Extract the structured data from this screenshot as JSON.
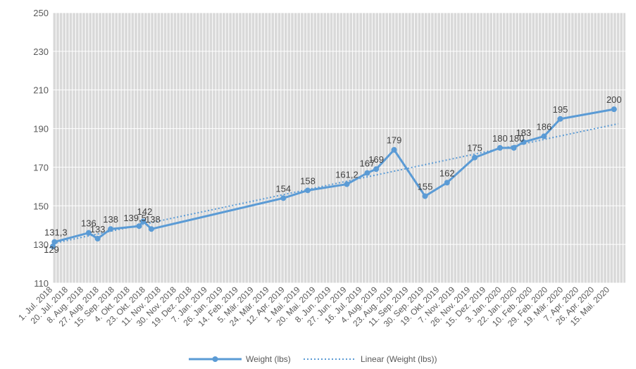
{
  "colors": {
    "background": "#ffffff",
    "plot_area": "#d9d9d9",
    "gridline": "#ffffff",
    "series": "#5b9bd5",
    "text": "#595959"
  },
  "chart_data": {
    "type": "line",
    "title": "",
    "xlabel": "",
    "ylabel": "",
    "ylim": [
      110,
      250
    ],
    "y_ticks": [
      110,
      130,
      150,
      170,
      190,
      210,
      230,
      250
    ],
    "x_axis_type": "date",
    "x_range": [
      "2018-07-01",
      "2020-06-03"
    ],
    "x_tick_interval_days": 19,
    "x_tick_labels": [
      "1. Jul. 2018",
      "20. Jul. 2018",
      "8. Aug. 2018",
      "27. Aug. 2018",
      "15. Sep. 2018",
      "4. Okt. 2018",
      "23. Okt. 2018",
      "11. Nov. 2018",
      "30. Nov. 2018",
      "19. Dez. 2018",
      "7. Jan. 2019",
      "26. Jan. 2019",
      "14. Feb. 2019",
      "5. Mär. 2019",
      "24. Mär. 2019",
      "12. Apr. 2019",
      "1. Mai. 2019",
      "20. Mai. 2019",
      "8. Jun. 2019",
      "27. Jun. 2019",
      "16. Jul. 2019",
      "4. Aug. 2019",
      "23. Aug. 2019",
      "11. Sep. 2019",
      "30. Sep. 2019",
      "19. Okt. 2019",
      "7. Nov. 2019",
      "26. Nov. 2019",
      "15. Dez. 2019",
      "3. Jan. 2020",
      "22. Jan. 2020",
      "10. Feb. 2020",
      "29. Feb. 2020",
      "19. Mär. 2020",
      "7. Apr. 2020",
      "26. Apr. 2020",
      "15. Mai. 2020"
    ],
    "grid": true,
    "legend_position": "bottom",
    "series": [
      {
        "name": "Weight (lbs)",
        "color": "#5b9bd5",
        "style": "solid-markers",
        "points": [
          {
            "x": "2018-07-01",
            "y": 129,
            "label": "129"
          },
          {
            "x": "2018-07-03",
            "y": 131.3,
            "label": "131,3"
          },
          {
            "x": "2018-08-14",
            "y": 136,
            "label": "136"
          },
          {
            "x": "2018-08-25",
            "y": 133,
            "label": "133"
          },
          {
            "x": "2018-09-10",
            "y": 138,
            "label": "138"
          },
          {
            "x": "2018-10-15",
            "y": 139.5,
            "label": "139,5"
          },
          {
            "x": "2018-10-20",
            "y": 142,
            "label": "142"
          },
          {
            "x": "2018-10-30",
            "y": 138,
            "label": "138"
          },
          {
            "x": "2019-04-10",
            "y": 154,
            "label": "154"
          },
          {
            "x": "2019-05-10",
            "y": 158,
            "label": "158"
          },
          {
            "x": "2019-06-27",
            "y": 161.2,
            "label": "161,2"
          },
          {
            "x": "2019-07-22",
            "y": 167,
            "label": "167"
          },
          {
            "x": "2019-08-02",
            "y": 169,
            "label": "169"
          },
          {
            "x": "2019-08-24",
            "y": 179,
            "label": "179"
          },
          {
            "x": "2019-10-01",
            "y": 155,
            "label": "155"
          },
          {
            "x": "2019-10-28",
            "y": 162,
            "label": "162"
          },
          {
            "x": "2019-12-01",
            "y": 175,
            "label": "175"
          },
          {
            "x": "2020-01-01",
            "y": 180,
            "label": "180"
          },
          {
            "x": "2020-01-18",
            "y": 180,
            "label": "180"
          },
          {
            "x": "2020-01-30",
            "y": 183,
            "label": "183"
          },
          {
            "x": "2020-02-24",
            "y": 186,
            "label": "186"
          },
          {
            "x": "2020-03-15",
            "y": 195,
            "label": "195"
          },
          {
            "x": "2020-05-20",
            "y": 200,
            "label": "200"
          }
        ]
      },
      {
        "name": "Linear (Weight (lbs))",
        "color": "#5b9bd5",
        "style": "dotted",
        "trendline_of": "Weight (lbs)",
        "points": [
          {
            "x": "2018-07-01",
            "y": 130.5
          },
          {
            "x": "2020-05-25",
            "y": 192.5
          }
        ]
      }
    ]
  },
  "legend": {
    "items": [
      {
        "label": "Weight (lbs)"
      },
      {
        "label": "Linear (Weight (lbs))"
      }
    ]
  }
}
